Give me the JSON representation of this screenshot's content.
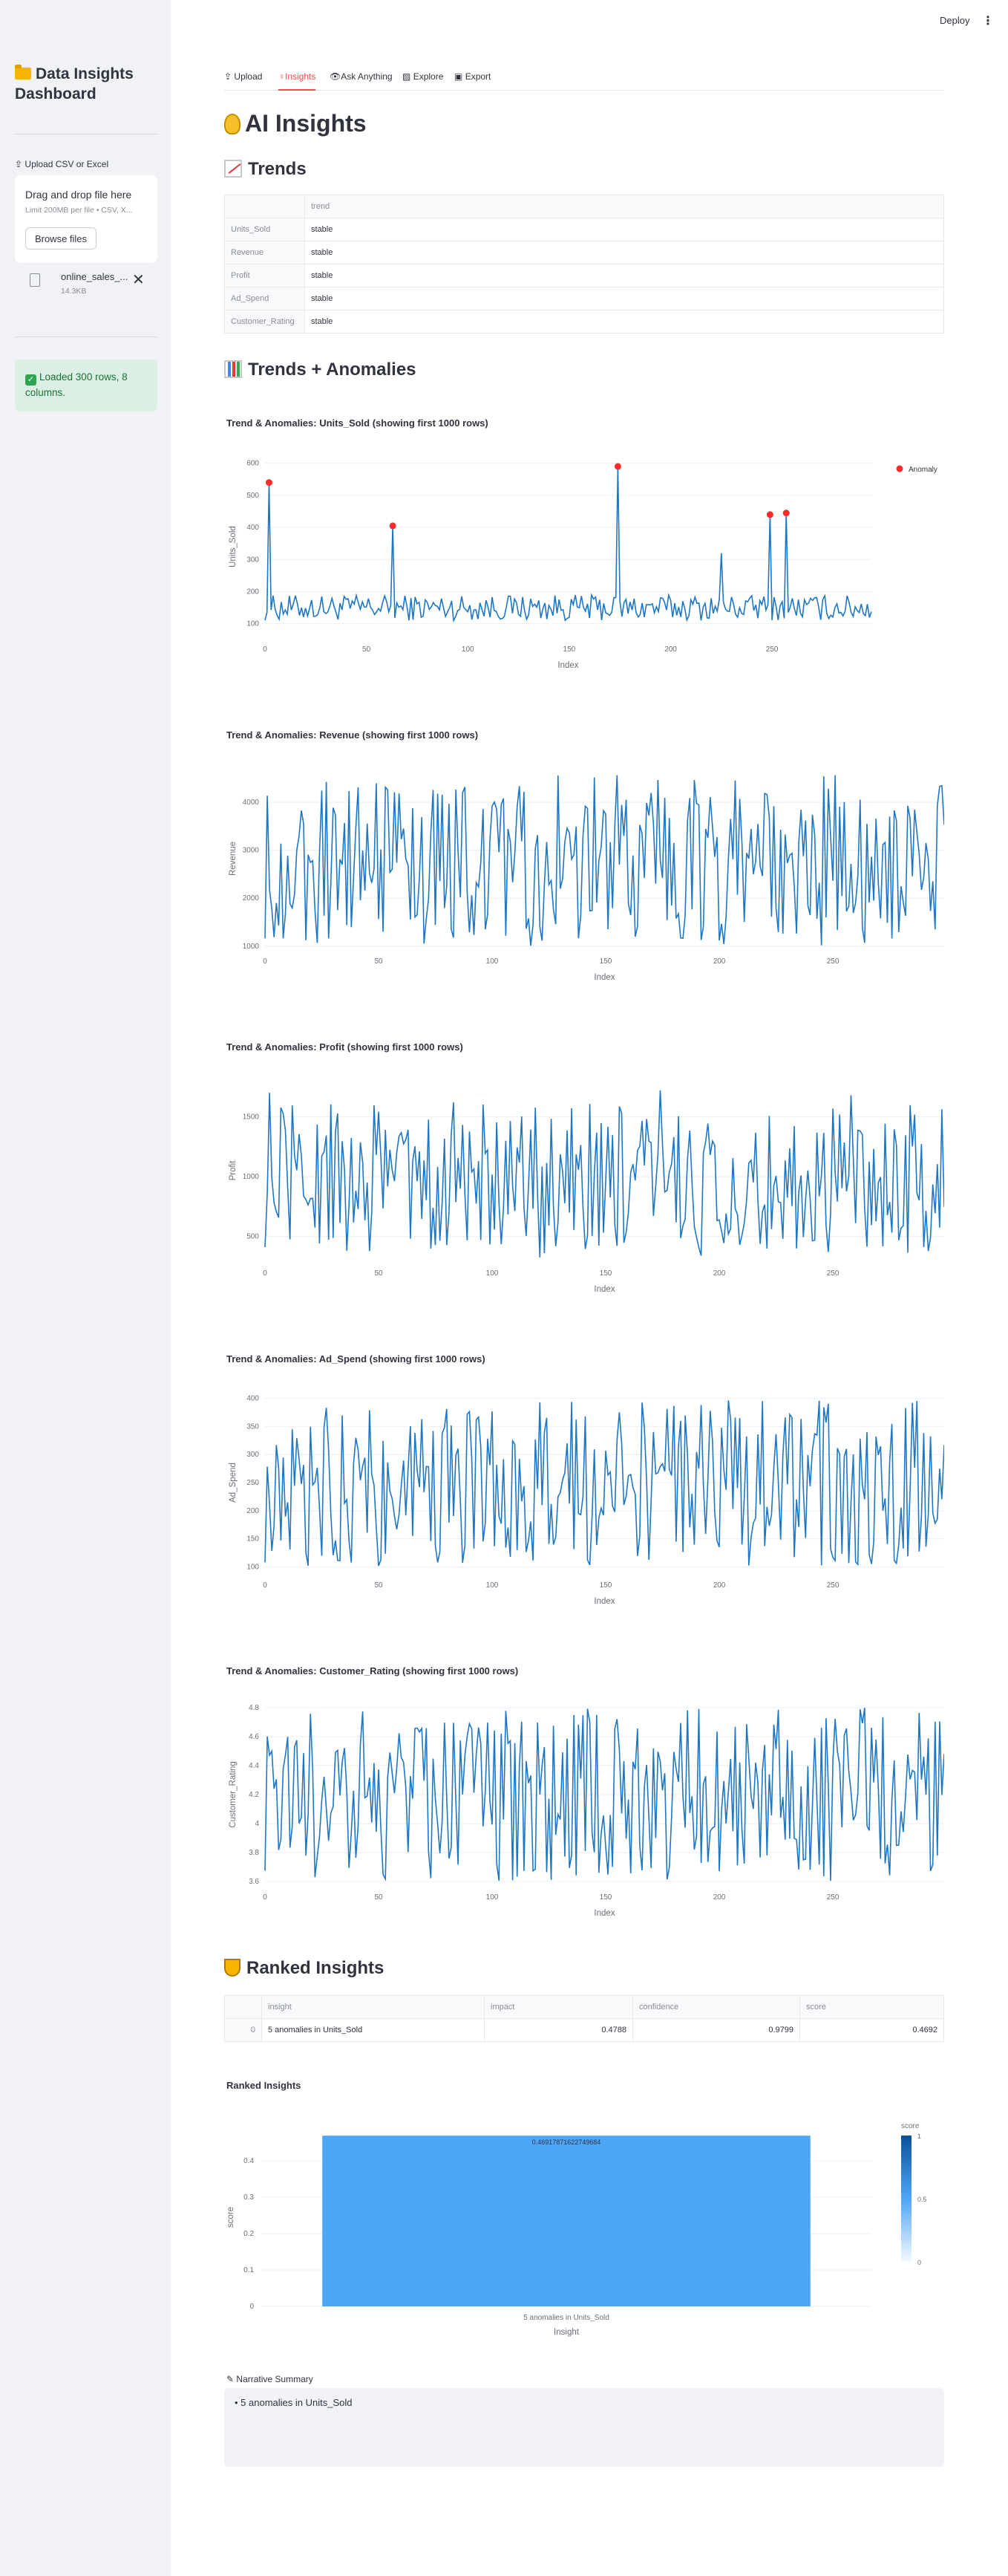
{
  "sidebar": {
    "title": "Data Insights Dashboard",
    "upload_label": "Upload CSV or Excel",
    "dropzone_title": "Drag and drop file here",
    "dropzone_limit": "Limit 200MB per file • CSV, X...",
    "browse_label": "Browse files",
    "file_name": "online_sales_...",
    "file_size": "14.3KB",
    "close_symbol": "✕",
    "success_check": "✓",
    "success_message": "Loaded 300 rows, 8 columns."
  },
  "topbar": {
    "deploy_label": "Deploy",
    "menu_symbol": "⋮"
  },
  "tabs": [
    {
      "label": "Upload"
    },
    {
      "label": "Insights"
    },
    {
      "label": "Ask Anything"
    },
    {
      "label": "Explore"
    },
    {
      "label": "Export"
    }
  ],
  "page": {
    "title": "AI Insights",
    "trends_heading": "Trends",
    "anomalies_heading": "Trends + Anomalies",
    "ranked_heading": "Ranked Insights",
    "ranked_chart_title": "Ranked Insights",
    "narrative_label": "Narrative Summary",
    "narrative_text": "• 5 anomalies in Units_Sold"
  },
  "trends_table": {
    "columns": [
      "",
      "trend"
    ],
    "rows": [
      {
        "index": "Units_Sold",
        "trend": "stable"
      },
      {
        "index": "Revenue",
        "trend": "stable"
      },
      {
        "index": "Profit",
        "trend": "stable"
      },
      {
        "index": "Ad_Spend",
        "trend": "stable"
      },
      {
        "index": "Customer_Rating",
        "trend": "stable"
      }
    ]
  },
  "ranked_table": {
    "columns": [
      "",
      "insight",
      "impact",
      "confidence",
      "score"
    ],
    "rows": [
      {
        "index": "0",
        "insight": "5 anomalies in Units_Sold",
        "impact": "0.4788",
        "confidence": "0.9799",
        "score": "0.4692"
      }
    ]
  },
  "chart_data": [
    {
      "type": "line",
      "title": "Trend & Anomalies: Units_Sold (showing first 1000 rows)",
      "xlabel": "Index",
      "ylabel": "Units_Sold",
      "xlim": [
        0,
        299
      ],
      "ylim": [
        60,
        620
      ],
      "xticks": [
        0,
        50,
        100,
        150,
        200,
        250
      ],
      "yticks": [
        100,
        200,
        300,
        400,
        500,
        600
      ],
      "legend": {
        "placement": "top-right",
        "entries": [
          "Anomaly"
        ]
      },
      "anomalies": {
        "name": "Anomaly",
        "color": "#ff2b2b",
        "x": [
          2,
          63,
          174,
          249,
          257
        ],
        "y": [
          540,
          405,
          590,
          440,
          445
        ]
      },
      "series": {
        "color": "#1f77c4",
        "base": 110,
        "amplitude": 80,
        "spikes": [
          [
            2,
            540
          ],
          [
            63,
            405
          ],
          [
            174,
            590
          ],
          [
            249,
            440
          ],
          [
            257,
            445
          ],
          [
            225,
            320
          ]
        ]
      }
    },
    {
      "type": "line",
      "title": "Trend & Anomalies: Revenue (showing first 1000 rows)",
      "xlabel": "Index",
      "ylabel": "Revenue",
      "xlim": [
        0,
        299
      ],
      "ylim": [
        950,
        4700
      ],
      "xticks": [
        0,
        50,
        100,
        150,
        200,
        250
      ],
      "yticks": [
        1000,
        2000,
        3000,
        4000
      ],
      "series": {
        "color": "#1f77c4",
        "base": 1000,
        "amplitude": 3600,
        "spikes": []
      }
    },
    {
      "type": "line",
      "title": "Trend & Anomalies: Profit (showing first 1000 rows)",
      "xlabel": "Index",
      "ylabel": "Profit",
      "xlim": [
        0,
        299
      ],
      "ylim": [
        300,
        1800
      ],
      "xticks": [
        0,
        50,
        100,
        150,
        200,
        250
      ],
      "yticks": [
        500,
        1000,
        1500
      ],
      "series": {
        "color": "#1f77c4",
        "base": 320,
        "amplitude": 1300,
        "spikes": [
          [
            174,
            1720
          ],
          [
            2,
            1700
          ],
          [
            258,
            1680
          ]
        ]
      }
    },
    {
      "type": "line",
      "title": "Trend & Anomalies: Ad_Spend (showing first 1000 rows)",
      "xlabel": "Index",
      "ylabel": "Ad_Spend",
      "xlim": [
        0,
        299
      ],
      "ylim": [
        90,
        410
      ],
      "xticks": [
        0,
        50,
        100,
        150,
        200,
        250
      ],
      "yticks": [
        100,
        150,
        200,
        250,
        300,
        350,
        400
      ],
      "series": {
        "color": "#1f77c4",
        "base": 100,
        "amplitude": 300,
        "spikes": []
      }
    },
    {
      "type": "line",
      "title": "Trend & Anomalies: Customer_Rating (showing first 1000 rows)",
      "xlabel": "Index",
      "ylabel": "Customer_Rating",
      "xlim": [
        0,
        299
      ],
      "ylim": [
        3.58,
        4.82
      ],
      "xticks": [
        0,
        50,
        100,
        150,
        200,
        250
      ],
      "yticks": [
        3.6,
        3.8,
        4,
        4.2,
        4.4,
        4.6,
        4.8
      ],
      "series": {
        "color": "#1f77c4",
        "base": 3.6,
        "amplitude": 1.2,
        "spikes": []
      }
    },
    {
      "type": "bar",
      "title": "Ranked Insights",
      "categories": [
        "5 anomalies in Units_Sold"
      ],
      "values": [
        0.4692
      ],
      "data_label": "0.46917871622749684",
      "xlabel": "Insight",
      "ylabel": "score",
      "ylim": [
        0,
        0.49
      ],
      "yticks": [
        0,
        0.1,
        0.2,
        0.3,
        0.4
      ],
      "colorbar": {
        "title": "score",
        "ticks": [
          "1",
          "0.5",
          "0"
        ]
      },
      "bar_color": "#4ea6f7"
    }
  ]
}
